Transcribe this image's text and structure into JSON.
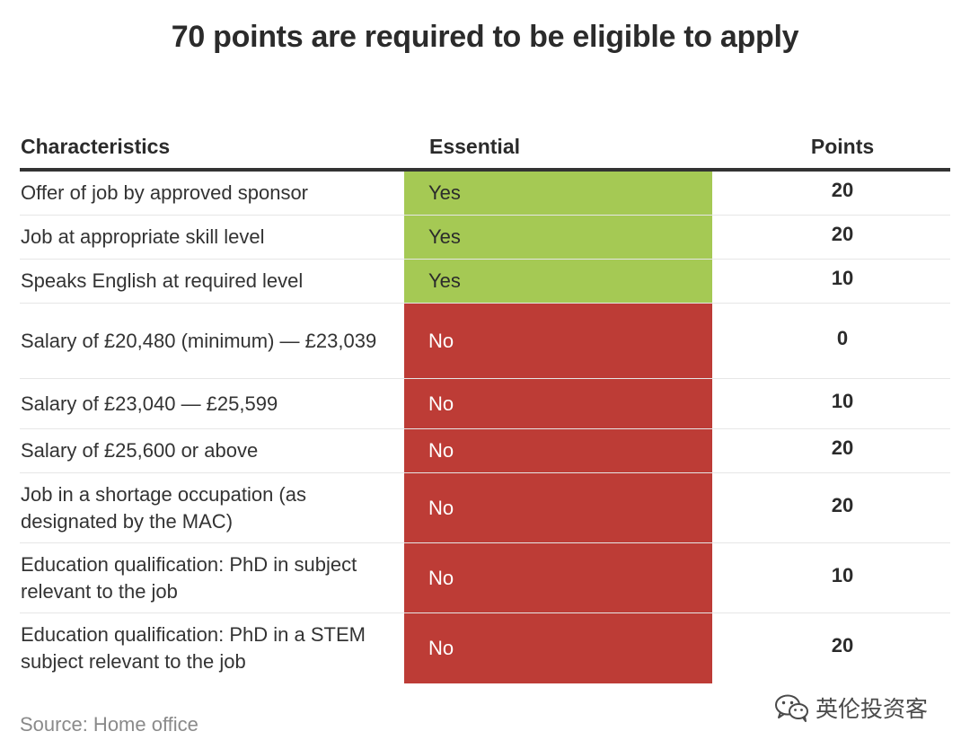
{
  "title": "70 points are required to be eligible to apply",
  "table": {
    "headers": {
      "characteristics": "Characteristics",
      "essential": "Essential",
      "points": "Points"
    },
    "rows": [
      {
        "characteristic": "Offer of job by approved sponsor",
        "essential": "Yes",
        "points": "20"
      },
      {
        "characteristic": "Job at appropriate skill level",
        "essential": "Yes",
        "points": "20"
      },
      {
        "characteristic": "Speaks English at required level",
        "essential": "Yes",
        "points": "10"
      },
      {
        "characteristic": "Salary of £20,480 (minimum) — £23,039",
        "essential": "No",
        "points": "0"
      },
      {
        "characteristic": "Salary of £23,040 — £25,599",
        "essential": "No",
        "points": "10"
      },
      {
        "characteristic": "Salary of £25,600 or above",
        "essential": "No",
        "points": "20"
      },
      {
        "characteristic": "Job in a shortage occupation (as designated by the MAC)",
        "essential": "No",
        "points": "20"
      },
      {
        "characteristic": "Education qualification: PhD in subject relevant to the job",
        "essential": "No",
        "points": "10"
      },
      {
        "characteristic": "Education qualification: PhD in a STEM subject relevant to the job",
        "essential": "No",
        "points": "20"
      }
    ]
  },
  "source": "Source: Home office",
  "watermark": {
    "text": "英伦投资客",
    "icon": "wechat-icon"
  },
  "colors": {
    "yes": "#a5c954",
    "no": "#bd3c36"
  }
}
